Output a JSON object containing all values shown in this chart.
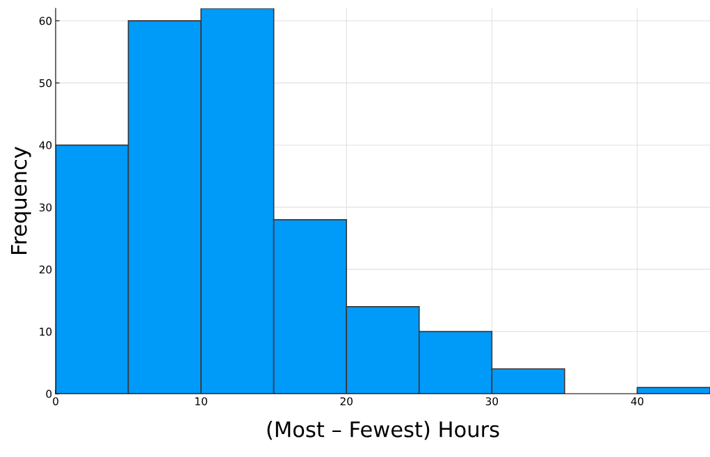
{
  "chart_data": {
    "type": "histogram",
    "xlabel": "(Most – Fewest) Hours",
    "ylabel": "Frequency",
    "bins": [
      0,
      5,
      10,
      15,
      20,
      25,
      30,
      35,
      40,
      45
    ],
    "values": [
      40,
      60,
      62,
      28,
      14,
      10,
      4,
      0,
      1
    ],
    "color": "#009af9",
    "xlim": [
      0,
      45
    ],
    "ylim": [
      0,
      62
    ],
    "xticks": [
      0,
      10,
      20,
      30,
      40
    ],
    "yticks": [
      0,
      10,
      20,
      30,
      40,
      50,
      60
    ],
    "grid": true,
    "legend": false
  }
}
